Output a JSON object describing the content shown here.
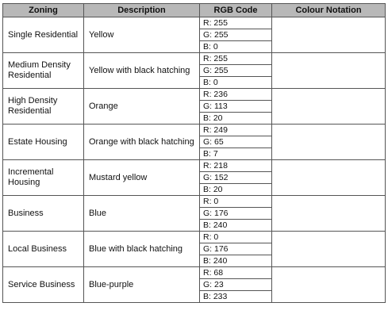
{
  "headers": [
    "Zoning",
    "Description",
    "RGB Code",
    "Colour Notation"
  ],
  "rows": [
    {
      "zoning": "Single Residential",
      "description": "Yellow",
      "r": "R: 255",
      "g": "G: 255",
      "b": "B: 0",
      "swatch_color": "#ececec"
    },
    {
      "zoning": "Medium Density Residential",
      "description": "Yellow with black hatching",
      "r": "R: 255",
      "g": "G: 255",
      "b": "B: 0",
      "swatch_color": "#e8e8e8"
    },
    {
      "zoning": "High Density Residential",
      "description": "Orange",
      "r": "R: 236",
      "g": "G: 113",
      "b": "B: 20",
      "swatch_color": "#939393"
    },
    {
      "zoning": "Estate Housing",
      "description": "Orange with black hatching",
      "r": "R: 249",
      "g": "G: 65",
      "b": "B: 7",
      "swatch_color": "#8f8f8f"
    },
    {
      "zoning": "Incremental Housing",
      "description": "Mustard yellow",
      "r": "R: 218",
      "g": "G: 152",
      "b": "B: 20",
      "swatch_color": "#999999"
    },
    {
      "zoning": "Business",
      "description": "Blue",
      "r": "R: 0",
      "g": "G: 176",
      "b": "B: 240",
      "swatch_color": "#939393"
    },
    {
      "zoning": "Local Business",
      "description": "Blue with black hatching",
      "r": "R: 0",
      "g": "G: 176",
      "b": "B: 240",
      "swatch_color": "#8f8f8f"
    },
    {
      "zoning": "Service Business",
      "description": "Blue-purple",
      "r": "R: 68",
      "g": "G: 23",
      "b": "B: 233",
      "swatch_color": "#555555"
    }
  ]
}
